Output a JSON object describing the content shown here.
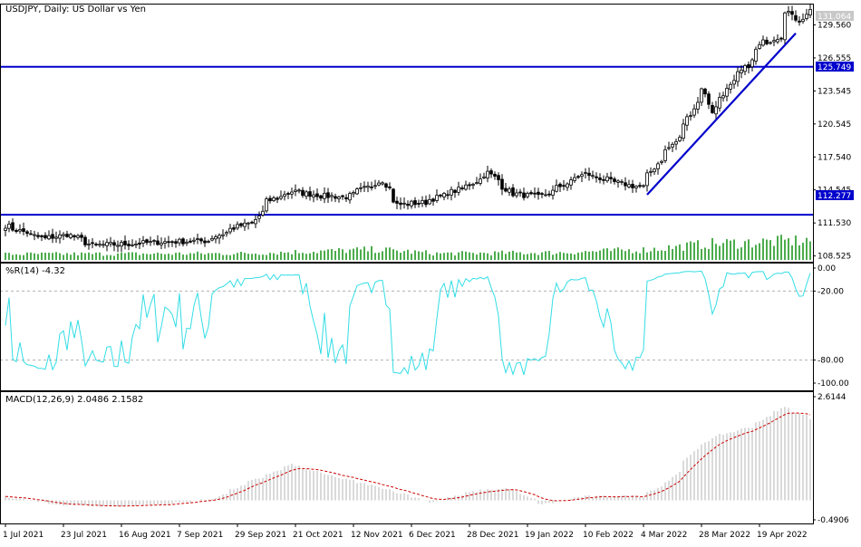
{
  "chart_data": [
    {
      "type": "candlestick",
      "title": "USDJPY, Daily:  US Dollar vs Yen",
      "symbol": "USDJPY",
      "timeframe": "Daily",
      "description": "US Dollar vs Yen",
      "ylim": [
        108.0,
        131.5
      ],
      "y_ticks": [
        "131.064",
        "129.560",
        "126.555",
        "125.749",
        "123.545",
        "120.545",
        "117.540",
        "114.545",
        "112.277",
        "111.530",
        "108.525"
      ],
      "current_price_label": "131.064",
      "horizontal_lines": [
        {
          "price": 125.749,
          "label": "125.749",
          "color": "#0000cc"
        },
        {
          "price": 112.277,
          "label": "112.277",
          "color": "#0000cc"
        }
      ],
      "trendline": {
        "from": {
          "date": "2022-03-07",
          "price": 114.1
        },
        "to": {
          "date": "2022-05-02",
          "price": 128.8
        },
        "color": "#0000cc"
      },
      "x_tick_labels": [
        "1 Jul 2021",
        "23 Jul 2021",
        "16 Aug 2021",
        "7 Sep 2021",
        "29 Sep 2021",
        "21 Oct 2021",
        "12 Nov 2021",
        "6 Dec 2021",
        "28 Dec 2021",
        "19 Jan 2022",
        "10 Feb 2022",
        "4 Mar 2022",
        "28 Mar 2022",
        "19 Apr 2022"
      ],
      "close_anchors": [
        {
          "date": "2021-07-01",
          "close": 111.3
        },
        {
          "date": "2021-07-16",
          "close": 110.1
        },
        {
          "date": "2021-07-26",
          "close": 110.5
        },
        {
          "date": "2021-08-04",
          "close": 109.5
        },
        {
          "date": "2021-08-16",
          "close": 109.6
        },
        {
          "date": "2021-08-31",
          "close": 109.8
        },
        {
          "date": "2021-09-17",
          "close": 109.9
        },
        {
          "date": "2021-09-30",
          "close": 111.3
        },
        {
          "date": "2021-10-05",
          "close": 111.5
        },
        {
          "date": "2021-10-11",
          "close": 113.5
        },
        {
          "date": "2021-10-20",
          "close": 114.4
        },
        {
          "date": "2021-11-01",
          "close": 114.0
        },
        {
          "date": "2021-11-10",
          "close": 113.9
        },
        {
          "date": "2021-11-24",
          "close": 115.4
        },
        {
          "date": "2021-11-30",
          "close": 113.2
        },
        {
          "date": "2021-12-10",
          "close": 113.4
        },
        {
          "date": "2021-12-27",
          "close": 114.9
        },
        {
          "date": "2022-01-04",
          "close": 116.1
        },
        {
          "date": "2022-01-13",
          "close": 114.2
        },
        {
          "date": "2022-01-24",
          "close": 113.9
        },
        {
          "date": "2022-02-10",
          "close": 116.0
        },
        {
          "date": "2022-02-24",
          "close": 115.1
        },
        {
          "date": "2022-03-04",
          "close": 114.8
        },
        {
          "date": "2022-03-11",
          "close": 117.3
        },
        {
          "date": "2022-03-18",
          "close": 119.2
        },
        {
          "date": "2022-03-28",
          "close": 123.9
        },
        {
          "date": "2022-03-31",
          "close": 121.7
        },
        {
          "date": "2022-04-08",
          "close": 124.3
        },
        {
          "date": "2022-04-14",
          "close": 125.9
        },
        {
          "date": "2022-04-20",
          "close": 128.0
        },
        {
          "date": "2022-04-27",
          "close": 128.5
        },
        {
          "date": "2022-04-28",
          "close": 130.9
        },
        {
          "date": "2022-05-04",
          "close": 130.0
        },
        {
          "date": "2022-05-09",
          "close": 131.1
        }
      ],
      "volume_anchors": [
        {
          "date": "2021-07-01",
          "volume": 0.25
        },
        {
          "date": "2021-10-01",
          "volume": 0.28
        },
        {
          "date": "2021-11-22",
          "volume": 0.45
        },
        {
          "date": "2021-12-15",
          "volume": 0.28
        },
        {
          "date": "2022-02-01",
          "volume": 0.32
        },
        {
          "date": "2022-03-07",
          "volume": 0.45
        },
        {
          "date": "2022-03-30",
          "volume": 0.7
        },
        {
          "date": "2022-05-09",
          "volume": 0.85
        }
      ]
    },
    {
      "type": "line",
      "title": "%R(14) -4.32",
      "indicator": "Williams %R",
      "period": 14,
      "current_value": -4.32,
      "ylim": [
        -100,
        0
      ],
      "y_ticks": [
        "0.00",
        "-20.00",
        "-80.00",
        "-100.00"
      ],
      "levels": [
        -20,
        -80
      ],
      "color": "#33dde6"
    },
    {
      "type": "bar",
      "title": "MACD(12,26,9) 2.0486 2.1582",
      "indicator": "MACD",
      "params": [
        12,
        26,
        9
      ],
      "macd_value": 2.0486,
      "signal_value": 2.1582,
      "ylim": [
        -0.4906,
        2.6144
      ],
      "y_ticks": [
        "2.6144",
        "-0.4906"
      ],
      "signal_color": "#cc0000",
      "macd_anchors": [
        {
          "date": "2021-07-01",
          "value": 0.1
        },
        {
          "date": "2021-07-20",
          "value": -0.1
        },
        {
          "date": "2021-08-10",
          "value": -0.15
        },
        {
          "date": "2021-09-01",
          "value": -0.1
        },
        {
          "date": "2021-09-20",
          "value": 0.05
        },
        {
          "date": "2021-10-05",
          "value": 0.5
        },
        {
          "date": "2021-10-20",
          "value": 0.9
        },
        {
          "date": "2021-11-05",
          "value": 0.6
        },
        {
          "date": "2021-11-25",
          "value": 0.3
        },
        {
          "date": "2021-12-13",
          "value": -0.05
        },
        {
          "date": "2021-12-31",
          "value": 0.25
        },
        {
          "date": "2022-01-12",
          "value": 0.3
        },
        {
          "date": "2022-01-25",
          "value": -0.1
        },
        {
          "date": "2022-02-10",
          "value": 0.1
        },
        {
          "date": "2022-03-04",
          "value": 0.1
        },
        {
          "date": "2022-03-15",
          "value": 0.5
        },
        {
          "date": "2022-03-25",
          "value": 1.3
        },
        {
          "date": "2022-04-01",
          "value": 1.6
        },
        {
          "date": "2022-04-15",
          "value": 1.85
        },
        {
          "date": "2022-04-28",
          "value": 2.35
        },
        {
          "date": "2022-05-09",
          "value": 2.05
        }
      ]
    }
  ]
}
